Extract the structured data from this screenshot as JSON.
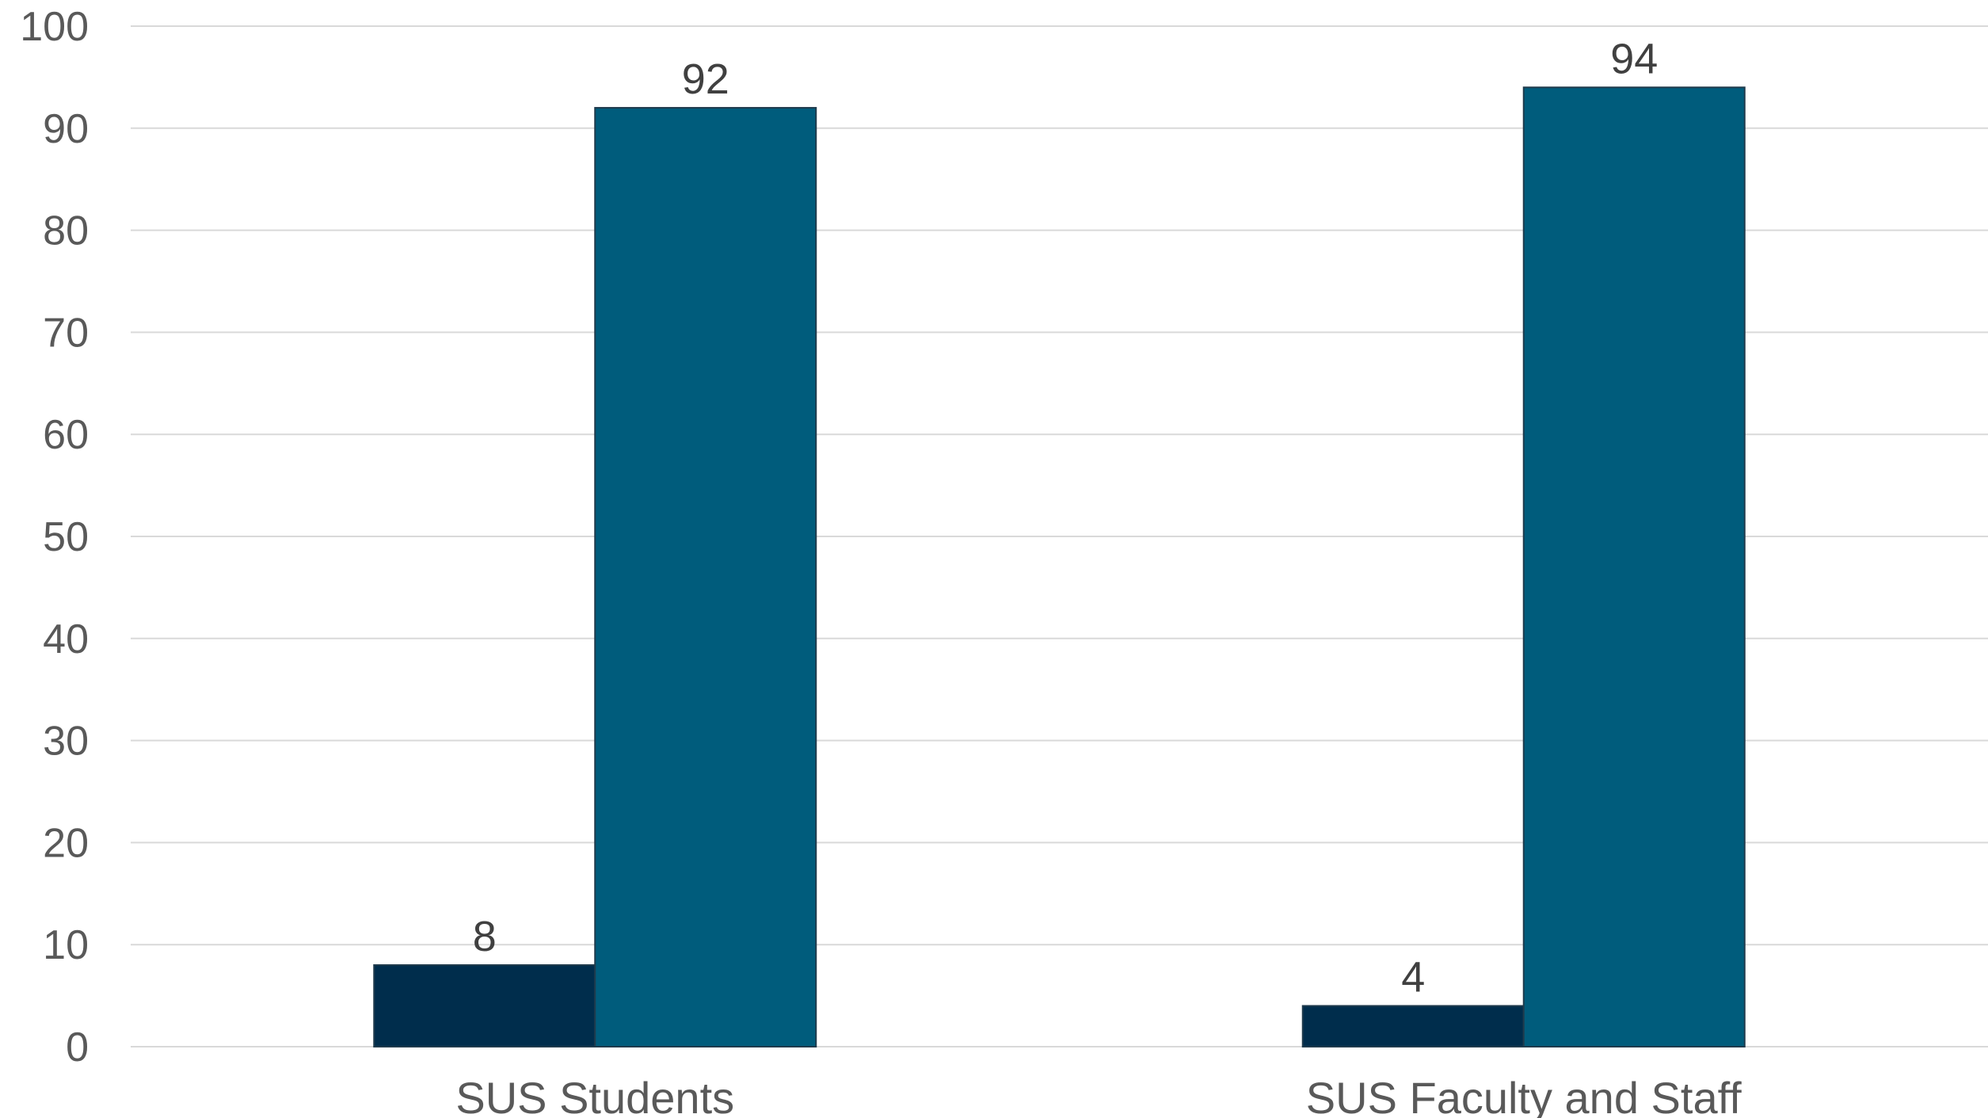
{
  "chart_data": {
    "type": "bar",
    "categories": [
      "SUS Students",
      "SUS Faculty and Staff"
    ],
    "series": [
      {
        "values": [
          8,
          4
        ],
        "color": "#002d4c"
      },
      {
        "values": [
          92,
          94
        ],
        "color": "#005c7c"
      }
    ],
    "ylim": [
      0,
      100
    ],
    "yticks": [
      "0",
      "10",
      "20",
      "30",
      "40",
      "50",
      "60",
      "70",
      "80",
      "90",
      "100"
    ],
    "grid": true,
    "data_labels": true
  }
}
